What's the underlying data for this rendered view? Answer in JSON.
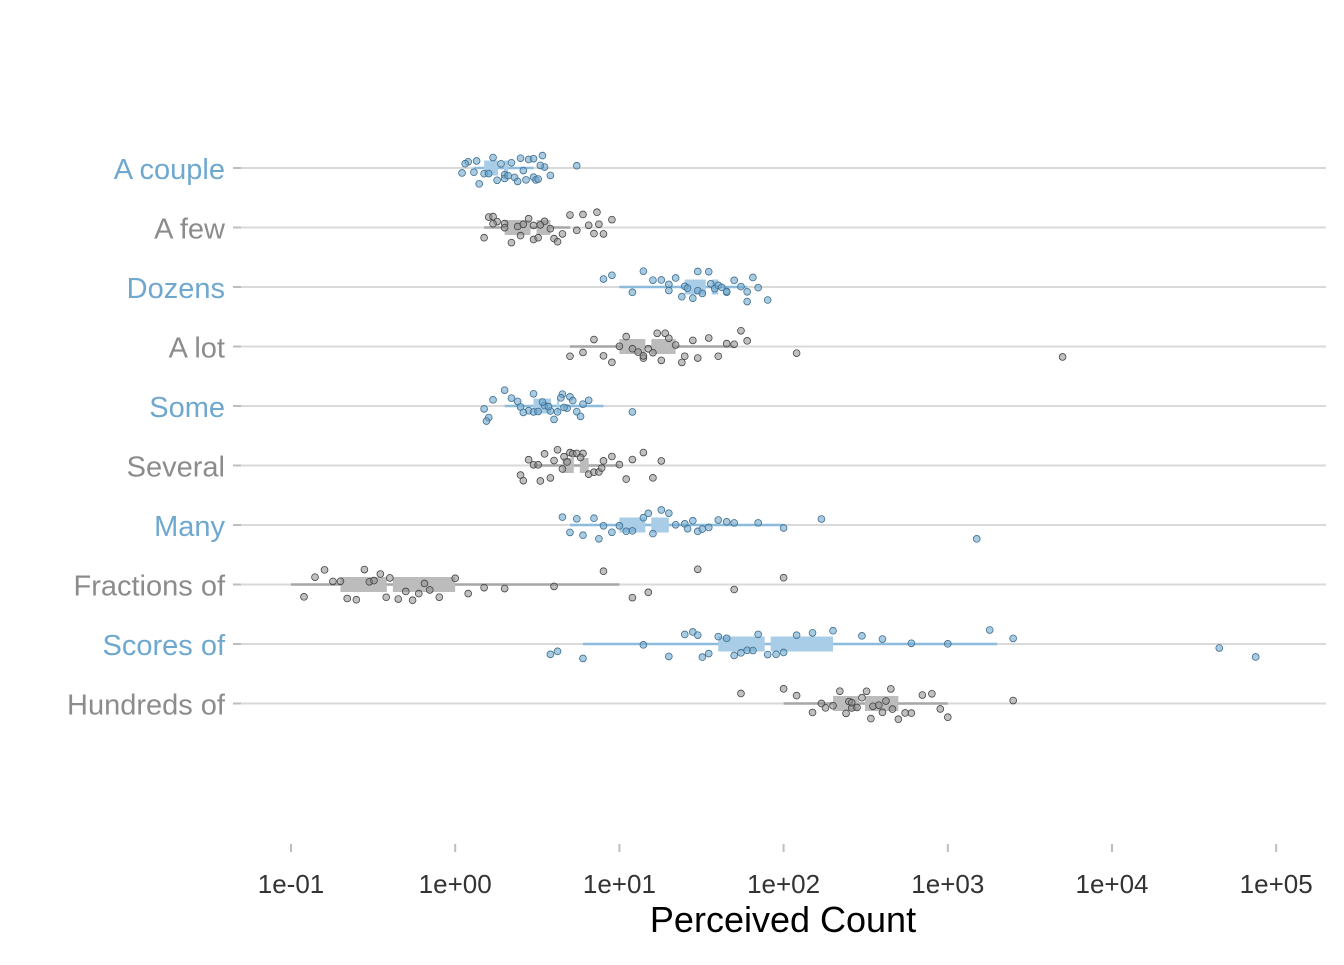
{
  "chart_data": {
    "type": "scatter",
    "xlabel": "Perceived Count",
    "ylabel": "",
    "x_scale": "log10",
    "xlim": [
      0.07,
      200000
    ],
    "x_ticks": [
      0.1,
      1,
      10,
      100,
      1000,
      10000,
      100000
    ],
    "x_tick_labels": [
      "1e-01",
      "1e+00",
      "1e+01",
      "1e+02",
      "1e+03",
      "1e+04",
      "1e+05"
    ],
    "grid": "horizontal lines only",
    "legend": "none",
    "colors": {
      "blue": "#6fa8cf",
      "gray": "#8c8c8c",
      "grid": "#d9d9d9"
    },
    "categories": [
      "A couple",
      "A few",
      "Dozens",
      "A lot",
      "Some",
      "Several",
      "Many",
      "Fractions of",
      "Scores of",
      "Hundreds of"
    ],
    "category_colors": [
      "blue",
      "gray",
      "blue",
      "gray",
      "blue",
      "gray",
      "blue",
      "gray",
      "blue",
      "gray"
    ],
    "boxes": [
      {
        "min": 1.3,
        "q1": 1.5,
        "median": 1.9,
        "q3": 2.1,
        "max": 3.0
      },
      {
        "min": 1.5,
        "q1": 2.0,
        "median": 3.0,
        "q3": 3.8,
        "max": 5.0
      },
      {
        "min": 10,
        "q1": 25,
        "median": 35,
        "q3": 40,
        "max": 60
      },
      {
        "min": 5,
        "q1": 10,
        "median": 15,
        "q3": 22,
        "max": 50
      },
      {
        "min": 2,
        "q1": 3,
        "median": 4,
        "q3": 4.3,
        "max": 8
      },
      {
        "min": 3,
        "q1": 4.5,
        "median": 5.5,
        "q3": 6.5,
        "max": 10
      },
      {
        "min": 5,
        "q1": 10,
        "median": 15,
        "q3": 20,
        "max": 100
      },
      {
        "min": 0.1,
        "q1": 0.2,
        "median": 0.4,
        "q3": 1.0,
        "max": 10
      },
      {
        "min": 6,
        "q1": 40,
        "median": 80,
        "q3": 200,
        "max": 2000
      },
      {
        "min": 100,
        "q1": 200,
        "median": 300,
        "q3": 500,
        "max": 1000
      }
    ],
    "points": [
      [
        1.1,
        1.2,
        1.3,
        1.4,
        1.5,
        1.6,
        1.7,
        1.8,
        2.0,
        2.0,
        2.1,
        2.2,
        2.3,
        2.5,
        2.6,
        2.8,
        3.0,
        3.0,
        3.1,
        3.2,
        3.4,
        3.5,
        3.8,
        1.15,
        1.35,
        1.9,
        2.4,
        2.7,
        3.3,
        5.5
      ],
      [
        1.5,
        1.6,
        1.7,
        1.8,
        2.0,
        2.0,
        2.2,
        2.4,
        2.5,
        2.8,
        3.0,
        3.0,
        3.2,
        3.5,
        3.8,
        4.0,
        4.5,
        5.0,
        5.5,
        6.0,
        7.0,
        7.5,
        8.0,
        9.0,
        1.7,
        2.6,
        3.3,
        4.2,
        6.5,
        7.3
      ],
      [
        8.0,
        9.0,
        12,
        14,
        16,
        18,
        20,
        22,
        24,
        25,
        26,
        28,
        30,
        32,
        35,
        38,
        40,
        42,
        45,
        50,
        55,
        60,
        65,
        70,
        80,
        20,
        30,
        45,
        60,
        36
      ],
      [
        5.0,
        6.0,
        7.0,
        8.0,
        9.0,
        10,
        11,
        12,
        13,
        14,
        15,
        16,
        17,
        18,
        19,
        20,
        22,
        25,
        28,
        30,
        35,
        40,
        45,
        50,
        55,
        60,
        120,
        5000,
        14,
        24
      ],
      [
        1.5,
        1.6,
        1.7,
        2.0,
        2.2,
        2.5,
        2.8,
        3.0,
        3.2,
        3.5,
        3.8,
        4.0,
        4.2,
        4.5,
        4.8,
        5.0,
        5.5,
        6.0,
        6.5,
        12,
        2.4,
        3.4,
        4.4,
        5.2,
        3.0,
        4.6,
        1.55,
        2.6,
        3.7,
        5.8
      ],
      [
        2.5,
        2.8,
        3.0,
        3.2,
        3.5,
        3.8,
        4.0,
        4.2,
        4.5,
        4.8,
        5.0,
        5.2,
        5.5,
        6.0,
        6.5,
        7.0,
        7.5,
        8.0,
        9.0,
        10,
        11,
        12,
        14,
        16,
        18,
        3.3,
        4.6,
        5.8,
        7.8,
        2.6
      ],
      [
        4.5,
        5.0,
        5.5,
        6.0,
        7.0,
        8.0,
        9.0,
        10,
        11,
        12,
        14,
        15,
        16,
        18,
        20,
        22,
        25,
        28,
        30,
        32,
        35,
        40,
        50,
        70,
        100,
        170,
        1500,
        7.5,
        26,
        45
      ],
      [
        0.12,
        0.14,
        0.16,
        0.18,
        0.2,
        0.22,
        0.25,
        0.28,
        0.3,
        0.32,
        0.35,
        0.38,
        0.4,
        0.45,
        0.5,
        0.55,
        0.6,
        0.65,
        0.7,
        0.8,
        1.0,
        1.2,
        1.5,
        2.0,
        4.0,
        8.0,
        12,
        15,
        30,
        50,
        100
      ],
      [
        3.8,
        4.2,
        6.0,
        14,
        20,
        25,
        28,
        30,
        32,
        35,
        40,
        45,
        50,
        55,
        60,
        65,
        70,
        80,
        90,
        100,
        120,
        150,
        200,
        300,
        400,
        600,
        1000,
        1800,
        2500,
        45000,
        75000
      ],
      [
        55,
        100,
        120,
        150,
        170,
        180,
        200,
        220,
        240,
        250,
        260,
        280,
        300,
        320,
        350,
        380,
        400,
        420,
        450,
        500,
        550,
        600,
        700,
        800,
        900,
        1000,
        2500,
        260,
        340,
        460
      ]
    ]
  }
}
